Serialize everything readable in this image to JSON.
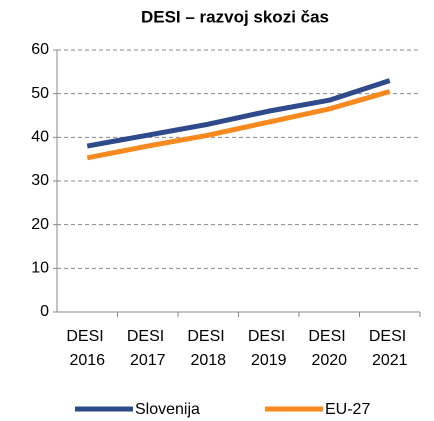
{
  "chart_data": {
    "type": "line",
    "title": "DESI – razvoj skozi čas",
    "categories": [
      "DESI 2016",
      "DESI 2017",
      "DESI 2018",
      "DESI 2019",
      "DESI 2020",
      "DESI 2021"
    ],
    "series": [
      {
        "name": "Slovenija",
        "color": "#2e4a8b",
        "values": [
          38,
          40.5,
          43,
          46,
          48.5,
          53
        ]
      },
      {
        "name": "EU-27",
        "color": "#f7891e",
        "values": [
          35.3,
          38,
          40.5,
          43.5,
          46.5,
          50.5
        ]
      }
    ],
    "ylim": [
      0,
      60
    ],
    "yticks": [
      0,
      10,
      20,
      30,
      40,
      50,
      60
    ],
    "grid": true,
    "legend": "bottom"
  }
}
